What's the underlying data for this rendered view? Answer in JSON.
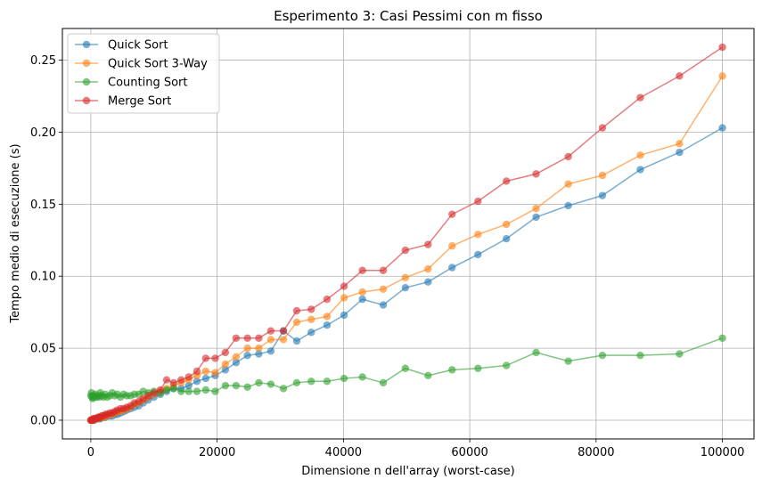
{
  "chart_data": {
    "type": "line",
    "title": "Esperimento 3: Casi Pessimi con m fisso",
    "xlabel": "Dimensione n dell'array (worst-case)",
    "ylabel": "Tempo medio di esecuzione (s)",
    "xlim": [
      -4500,
      105000
    ],
    "ylim": [
      -0.013,
      0.272
    ],
    "xticks": [
      0,
      20000,
      40000,
      60000,
      80000,
      100000
    ],
    "xtick_labels": [
      "0",
      "20000",
      "40000",
      "60000",
      "80000",
      "100000"
    ],
    "yticks": [
      0.0,
      0.05,
      0.1,
      0.15,
      0.2,
      0.25
    ],
    "ytick_labels": [
      "0.00",
      "0.05",
      "0.10",
      "0.15",
      "0.20",
      "0.25"
    ],
    "grid": true,
    "legend_position": "top-left",
    "x": [
      10,
      100,
      200,
      300,
      400,
      500,
      700,
      900,
      1100,
      1300,
      1500,
      1700,
      2000,
      2300,
      2600,
      3000,
      3400,
      3800,
      4200,
      4700,
      5200,
      5700,
      6300,
      6900,
      7600,
      8300,
      9100,
      10000,
      11000,
      12000,
      13100,
      14300,
      15500,
      16800,
      18200,
      19700,
      21300,
      23000,
      24800,
      26600,
      28500,
      30500,
      32600,
      34900,
      37400,
      40100,
      43000,
      46300,
      49800,
      53400,
      57200,
      61300,
      65800,
      70500,
      75600,
      81000,
      87000,
      93200,
      100000
    ],
    "series": [
      {
        "name": "Quick Sort",
        "color": "#1f77b4",
        "values": [
          0.0,
          0.0,
          0.0,
          0.0,
          0.0,
          0.0,
          0.001,
          0.001,
          0.001,
          0.001,
          0.001,
          0.002,
          0.002,
          0.002,
          0.003,
          0.003,
          0.003,
          0.004,
          0.004,
          0.005,
          0.006,
          0.007,
          0.008,
          0.009,
          0.01,
          0.012,
          0.014,
          0.016,
          0.018,
          0.02,
          0.022,
          0.022,
          0.024,
          0.027,
          0.029,
          0.031,
          0.035,
          0.04,
          0.045,
          0.046,
          0.048,
          0.062,
          0.055,
          0.061,
          0.066,
          0.073,
          0.084,
          0.08,
          0.092,
          0.096,
          0.106,
          0.115,
          0.126,
          0.141,
          0.149,
          0.156,
          0.174,
          0.186,
          0.203
        ]
      },
      {
        "name": "Quick Sort 3-Way",
        "color": "#ff7f0e",
        "values": [
          0.0,
          0.0,
          0.0,
          0.0,
          0.0,
          0.0,
          0.001,
          0.001,
          0.001,
          0.002,
          0.002,
          0.002,
          0.002,
          0.003,
          0.003,
          0.004,
          0.004,
          0.005,
          0.006,
          0.006,
          0.007,
          0.008,
          0.009,
          0.011,
          0.012,
          0.014,
          0.016,
          0.018,
          0.02,
          0.022,
          0.024,
          0.026,
          0.028,
          0.031,
          0.034,
          0.033,
          0.039,
          0.044,
          0.05,
          0.05,
          0.056,
          0.056,
          0.068,
          0.07,
          0.072,
          0.085,
          0.089,
          0.091,
          0.099,
          0.105,
          0.121,
          0.129,
          0.136,
          0.147,
          0.164,
          0.17,
          0.184,
          0.192,
          0.239
        ]
      },
      {
        "name": "Counting Sort",
        "color": "#2ca02c",
        "values": [
          0.017,
          0.019,
          0.016,
          0.015,
          0.017,
          0.016,
          0.018,
          0.016,
          0.017,
          0.016,
          0.019,
          0.017,
          0.016,
          0.018,
          0.016,
          0.017,
          0.019,
          0.017,
          0.018,
          0.016,
          0.018,
          0.017,
          0.017,
          0.018,
          0.018,
          0.02,
          0.019,
          0.02,
          0.019,
          0.021,
          0.022,
          0.02,
          0.02,
          0.02,
          0.021,
          0.02,
          0.024,
          0.024,
          0.023,
          0.026,
          0.025,
          0.022,
          0.026,
          0.027,
          0.027,
          0.029,
          0.03,
          0.026,
          0.036,
          0.031,
          0.035,
          0.036,
          0.038,
          0.047,
          0.041,
          0.045,
          0.045,
          0.046,
          0.057
        ]
      },
      {
        "name": "Merge Sort",
        "color": "#d62728",
        "values": [
          0.0,
          0.0,
          0.0,
          0.0,
          0.001,
          0.001,
          0.001,
          0.001,
          0.002,
          0.002,
          0.002,
          0.003,
          0.003,
          0.004,
          0.004,
          0.005,
          0.005,
          0.006,
          0.007,
          0.008,
          0.008,
          0.009,
          0.01,
          0.012,
          0.013,
          0.015,
          0.017,
          0.019,
          0.021,
          0.028,
          0.026,
          0.028,
          0.03,
          0.034,
          0.043,
          0.043,
          0.047,
          0.057,
          0.057,
          0.057,
          0.062,
          0.062,
          0.076,
          0.077,
          0.084,
          0.093,
          0.104,
          0.104,
          0.118,
          0.122,
          0.143,
          0.152,
          0.166,
          0.171,
          0.183,
          0.203,
          0.224,
          0.239,
          0.259
        ]
      }
    ]
  }
}
